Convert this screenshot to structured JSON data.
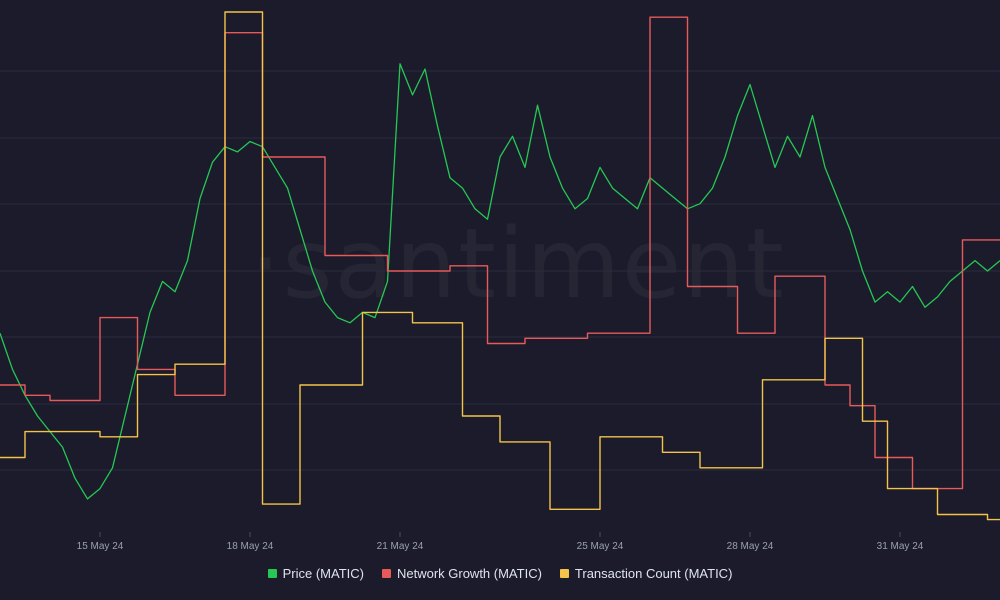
{
  "brand": {
    "watermark": "·santiment"
  },
  "colors": {
    "background": "#1b1b2b",
    "grid": "#2a2b3c",
    "price": "#26c853",
    "network_growth": "#e75a5a",
    "transaction_count": "#f3c34a"
  },
  "legend": {
    "items": [
      {
        "label": "Price (MATIC)",
        "color": "#26c853"
      },
      {
        "label": "Network Growth (MATIC)",
        "color": "#e75a5a"
      },
      {
        "label": "Transaction Count (MATIC)",
        "color": "#f3c34a"
      }
    ],
    "placement": "bottom-center"
  },
  "chart_data": {
    "type": "line",
    "title": "",
    "xlabel": "",
    "ylabel": "",
    "x_range": [
      "2024-05-13T00:00",
      "2024-06-02T00:00"
    ],
    "x_tick_labels": [
      {
        "date": "2024-05-15",
        "label": "15 May 24"
      },
      {
        "date": "2024-05-18",
        "label": "18 May 24"
      },
      {
        "date": "2024-05-21",
        "label": "21 May 24"
      },
      {
        "date": "2024-05-25",
        "label": "25 May 24"
      },
      {
        "date": "2024-05-28",
        "label": "28 May 24"
      },
      {
        "date": "2024-05-31",
        "label": "31 May 24"
      }
    ],
    "grid": {
      "horizontal": true,
      "vertical": false
    },
    "y_axes_visible": false,
    "series": [
      {
        "name": "Price (MATIC)",
        "style": "line",
        "y_range": [
          0,
          100
        ],
        "points": [
          [
            "2024-05-13T00:00",
            38
          ],
          [
            "2024-05-13T06:00",
            31
          ],
          [
            "2024-05-13T12:00",
            26
          ],
          [
            "2024-05-13T18:00",
            22
          ],
          [
            "2024-05-14T00:00",
            19
          ],
          [
            "2024-05-14T06:00",
            16
          ],
          [
            "2024-05-14T12:00",
            10
          ],
          [
            "2024-05-14T18:00",
            6
          ],
          [
            "2024-05-15T00:00",
            8
          ],
          [
            "2024-05-15T06:00",
            12
          ],
          [
            "2024-05-15T12:00",
            22
          ],
          [
            "2024-05-15T18:00",
            32
          ],
          [
            "2024-05-16T00:00",
            42
          ],
          [
            "2024-05-16T06:00",
            48
          ],
          [
            "2024-05-16T12:00",
            46
          ],
          [
            "2024-05-16T18:00",
            52
          ],
          [
            "2024-05-17T00:00",
            64
          ],
          [
            "2024-05-17T06:00",
            71
          ],
          [
            "2024-05-17T12:00",
            74
          ],
          [
            "2024-05-17T18:00",
            73
          ],
          [
            "2024-05-18T00:00",
            75
          ],
          [
            "2024-05-18T06:00",
            74
          ],
          [
            "2024-05-18T12:00",
            70
          ],
          [
            "2024-05-18T18:00",
            66
          ],
          [
            "2024-05-19T00:00",
            58
          ],
          [
            "2024-05-19T06:00",
            50
          ],
          [
            "2024-05-19T12:00",
            44
          ],
          [
            "2024-05-19T18:00",
            41
          ],
          [
            "2024-05-20T00:00",
            40
          ],
          [
            "2024-05-20T06:00",
            42
          ],
          [
            "2024-05-20T12:00",
            41
          ],
          [
            "2024-05-20T18:00",
            48
          ],
          [
            "2024-05-21T00:00",
            90
          ],
          [
            "2024-05-21T06:00",
            84
          ],
          [
            "2024-05-21T12:00",
            89
          ],
          [
            "2024-05-21T18:00",
            78
          ],
          [
            "2024-05-22T00:00",
            68
          ],
          [
            "2024-05-22T06:00",
            66
          ],
          [
            "2024-05-22T12:00",
            62
          ],
          [
            "2024-05-22T18:00",
            60
          ],
          [
            "2024-05-23T00:00",
            72
          ],
          [
            "2024-05-23T06:00",
            76
          ],
          [
            "2024-05-23T12:00",
            70
          ],
          [
            "2024-05-23T18:00",
            82
          ],
          [
            "2024-05-24T00:00",
            72
          ],
          [
            "2024-05-24T06:00",
            66
          ],
          [
            "2024-05-24T12:00",
            62
          ],
          [
            "2024-05-24T18:00",
            64
          ],
          [
            "2024-05-25T00:00",
            70
          ],
          [
            "2024-05-25T06:00",
            66
          ],
          [
            "2024-05-25T12:00",
            64
          ],
          [
            "2024-05-25T18:00",
            62
          ],
          [
            "2024-05-26T00:00",
            68
          ],
          [
            "2024-05-26T06:00",
            66
          ],
          [
            "2024-05-26T12:00",
            64
          ],
          [
            "2024-05-26T18:00",
            62
          ],
          [
            "2024-05-27T00:00",
            63
          ],
          [
            "2024-05-27T06:00",
            66
          ],
          [
            "2024-05-27T12:00",
            72
          ],
          [
            "2024-05-27T18:00",
            80
          ],
          [
            "2024-05-28T00:00",
            86
          ],
          [
            "2024-05-28T06:00",
            78
          ],
          [
            "2024-05-28T12:00",
            70
          ],
          [
            "2024-05-28T18:00",
            76
          ],
          [
            "2024-05-29T00:00",
            72
          ],
          [
            "2024-05-29T06:00",
            80
          ],
          [
            "2024-05-29T12:00",
            70
          ],
          [
            "2024-05-29T18:00",
            64
          ],
          [
            "2024-05-30T00:00",
            58
          ],
          [
            "2024-05-30T06:00",
            50
          ],
          [
            "2024-05-30T12:00",
            44
          ],
          [
            "2024-05-30T18:00",
            46
          ],
          [
            "2024-05-31T00:00",
            44
          ],
          [
            "2024-05-31T06:00",
            47
          ],
          [
            "2024-05-31T12:00",
            43
          ],
          [
            "2024-05-31T18:00",
            45
          ],
          [
            "2024-06-01T00:00",
            48
          ],
          [
            "2024-06-01T06:00",
            50
          ],
          [
            "2024-06-01T12:00",
            52
          ],
          [
            "2024-06-01T18:00",
            50
          ],
          [
            "2024-06-02T00:00",
            52
          ]
        ]
      },
      {
        "name": "Network Growth (MATIC)",
        "style": "step",
        "y_range": [
          0,
          100
        ],
        "steps": [
          [
            "2024-05-13T00:00",
            28
          ],
          [
            "2024-05-13T12:00",
            26
          ],
          [
            "2024-05-14T00:00",
            25
          ],
          [
            "2024-05-15T00:00",
            41
          ],
          [
            "2024-05-15T18:00",
            31
          ],
          [
            "2024-05-16T12:00",
            26
          ],
          [
            "2024-05-17T12:00",
            96
          ],
          [
            "2024-05-18T06:00",
            72
          ],
          [
            "2024-05-19T12:00",
            53
          ],
          [
            "2024-05-20T18:00",
            50
          ],
          [
            "2024-05-22T00:00",
            51
          ],
          [
            "2024-05-22T18:00",
            36
          ],
          [
            "2024-05-23T12:00",
            37
          ],
          [
            "2024-05-24T18:00",
            38
          ],
          [
            "2024-05-26T00:00",
            99
          ],
          [
            "2024-05-26T18:00",
            47
          ],
          [
            "2024-05-27T18:00",
            38
          ],
          [
            "2024-05-28T12:00",
            49
          ],
          [
            "2024-05-29T12:00",
            28
          ],
          [
            "2024-05-30T00:00",
            24
          ],
          [
            "2024-05-30T12:00",
            14
          ],
          [
            "2024-05-31T06:00",
            8
          ],
          [
            "2024-06-01T06:00",
            56
          ],
          [
            "2024-06-02T00:00",
            56
          ]
        ]
      },
      {
        "name": "Transaction Count (MATIC)",
        "style": "step",
        "y_range": [
          0,
          100
        ],
        "steps": [
          [
            "2024-05-13T00:00",
            14
          ],
          [
            "2024-05-13T12:00",
            19
          ],
          [
            "2024-05-14T00:00",
            19
          ],
          [
            "2024-05-15T00:00",
            18
          ],
          [
            "2024-05-15T18:00",
            30
          ],
          [
            "2024-05-16T12:00",
            32
          ],
          [
            "2024-05-17T12:00",
            100
          ],
          [
            "2024-05-18T06:00",
            5
          ],
          [
            "2024-05-19T00:00",
            28
          ],
          [
            "2024-05-20T06:00",
            42
          ],
          [
            "2024-05-21T06:00",
            40
          ],
          [
            "2024-05-22T06:00",
            22
          ],
          [
            "2024-05-23T00:00",
            17
          ],
          [
            "2024-05-24T00:00",
            4
          ],
          [
            "2024-05-25T00:00",
            18
          ],
          [
            "2024-05-26T06:00",
            15
          ],
          [
            "2024-05-27T00:00",
            12
          ],
          [
            "2024-05-28T06:00",
            29
          ],
          [
            "2024-05-29T12:00",
            37
          ],
          [
            "2024-05-30T06:00",
            21
          ],
          [
            "2024-05-30T18:00",
            8
          ],
          [
            "2024-05-31T18:00",
            3
          ],
          [
            "2024-06-01T18:00",
            2
          ],
          [
            "2024-06-02T00:00",
            2
          ]
        ]
      }
    ]
  }
}
